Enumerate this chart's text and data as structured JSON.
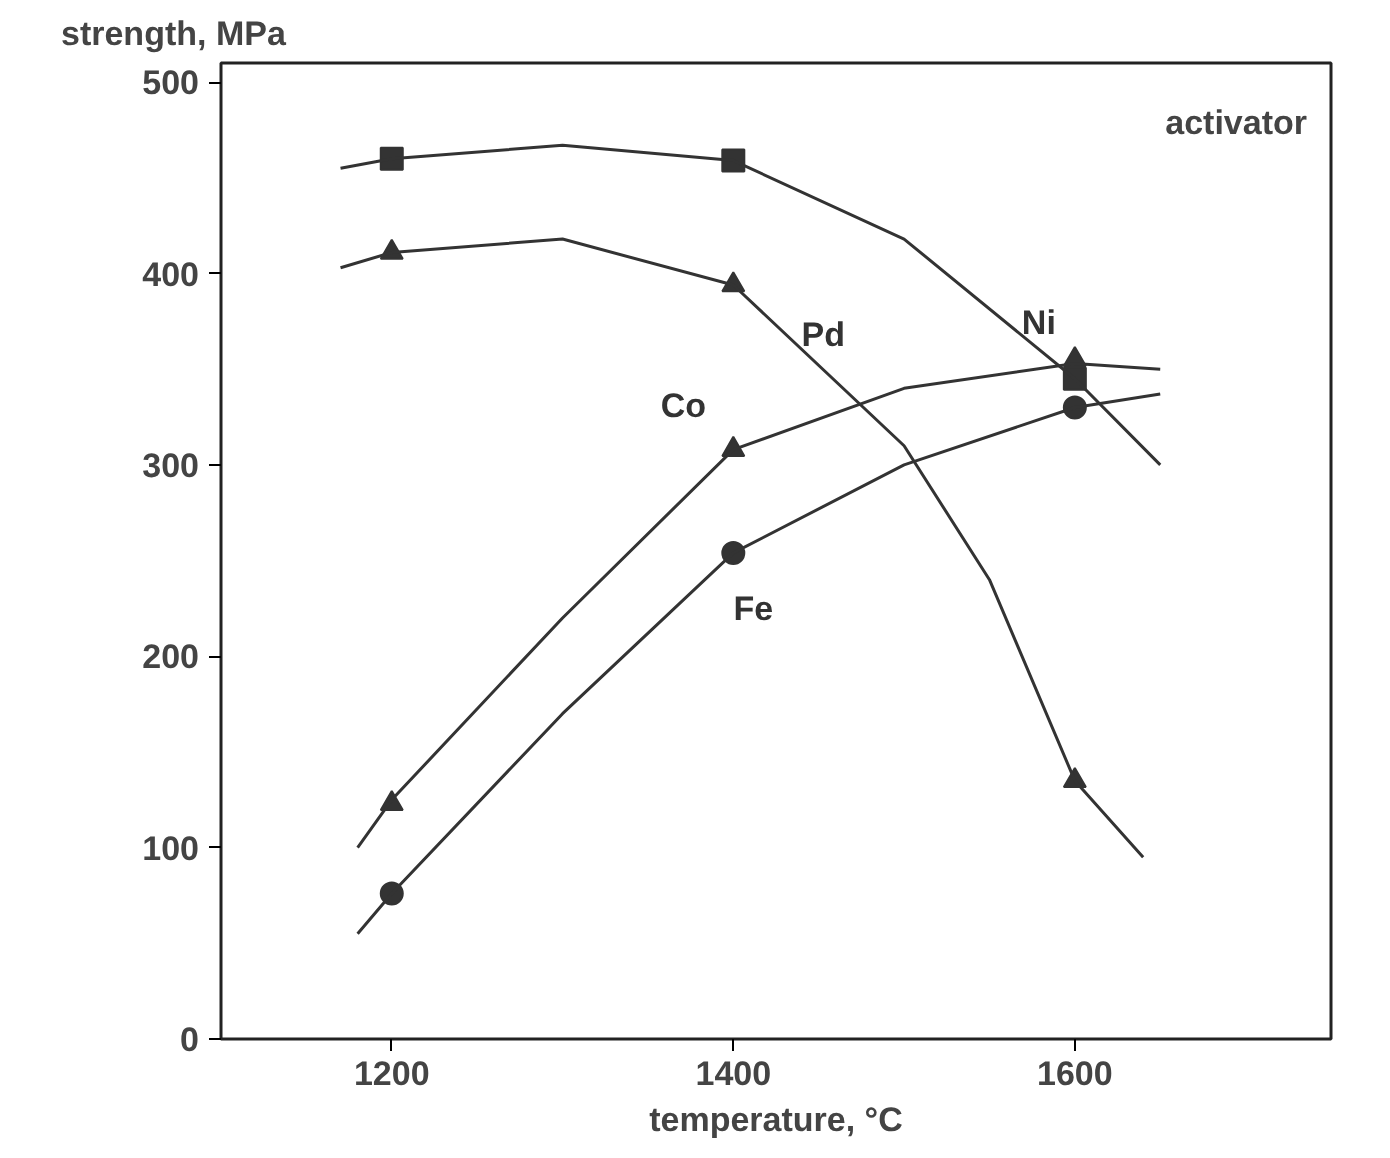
{
  "chart_data": {
    "type": "scatter",
    "xlabel": "temperature, °C",
    "ylabel": "strength, MPa",
    "xlim": [
      1100,
      1750
    ],
    "ylim": [
      0,
      510
    ],
    "xticks": [
      1200,
      1400,
      1600
    ],
    "yticks": [
      0,
      100,
      200,
      300,
      400,
      500
    ],
    "grid": false,
    "series": [
      {
        "name": "Ni",
        "marker": "square",
        "color": "#333333",
        "x": [
          1200,
          1400,
          1600
        ],
        "values": [
          460,
          459,
          345
        ]
      },
      {
        "name": "Pd",
        "marker": "triangle",
        "color": "#333333",
        "x": [
          1200,
          1400,
          1600
        ],
        "values": [
          411,
          394,
          135
        ]
      },
      {
        "name": "Co",
        "marker": "triangle",
        "color": "#333333",
        "x": [
          1200,
          1400,
          1600
        ],
        "values": [
          123,
          308,
          355
        ]
      },
      {
        "name": "Fe",
        "marker": "circle",
        "color": "#333333",
        "x": [
          1200,
          1400,
          1600
        ],
        "values": [
          76,
          254,
          330
        ]
      },
      {
        "type": "line",
        "color": "#333333",
        "x": [
          1170,
          1200,
          1300,
          1400,
          1500,
          1600,
          1650
        ],
        "values": [
          455,
          460,
          467,
          459,
          418,
          345,
          300
        ]
      },
      {
        "type": "line",
        "color": "#333333",
        "x": [
          1170,
          1200,
          1300,
          1400,
          1500,
          1550,
          1600,
          1640
        ],
        "values": [
          403,
          411,
          418,
          394,
          310,
          240,
          135,
          95
        ]
      },
      {
        "type": "line",
        "color": "#333333",
        "x": [
          1180,
          1200,
          1300,
          1400,
          1500,
          1600,
          1650
        ],
        "values": [
          100,
          125,
          220,
          308,
          340,
          353,
          350
        ]
      },
      {
        "type": "line",
        "color": "#333333",
        "x": [
          1180,
          1200,
          1300,
          1400,
          1500,
          1600,
          1650
        ],
        "values": [
          55,
          76,
          170,
          254,
          300,
          330,
          337
        ]
      }
    ],
    "annotations": [
      "activator"
    ]
  }
}
